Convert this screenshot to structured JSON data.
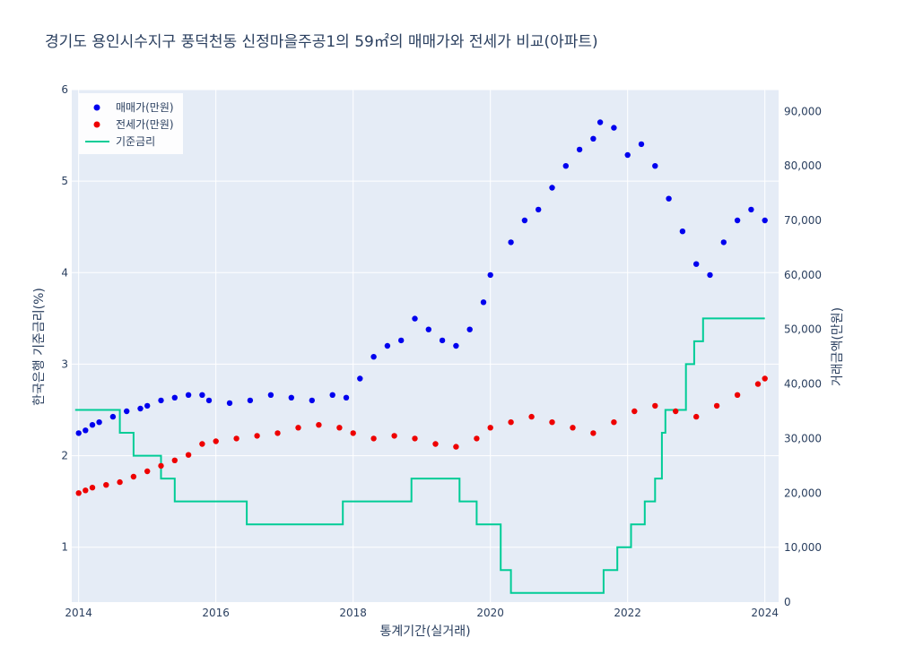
{
  "chart_data": {
    "type": "scatter",
    "title": "경기도 용인시수지구 풍덕천동 신정마을주공1의 59㎡의 매매가와 전세가 비교(아파트)",
    "xlabel": "통계기간(실거래)",
    "y_left_label": "한국은행 기준금리(%)",
    "y_right_label": "거래금액(만원)",
    "x_range": [
      2013.9,
      2024.2
    ],
    "x_ticks": [
      2014,
      2016,
      2018,
      2020,
      2022,
      2024
    ],
    "x_tick_labels": [
      "2014",
      "2016",
      "2018",
      "2020",
      "2022",
      "2024"
    ],
    "y_left_range": [
      0.4,
      6.0
    ],
    "y_left_ticks": [
      1,
      2,
      3,
      4,
      5,
      6
    ],
    "y_left_tick_labels": [
      "1",
      "2",
      "3",
      "4",
      "5",
      "6"
    ],
    "y_right_range": [
      0,
      94000
    ],
    "y_right_ticks": [
      0,
      10000,
      20000,
      30000,
      40000,
      50000,
      60000,
      70000,
      80000,
      90000
    ],
    "y_right_tick_labels": [
      "0",
      "10,000",
      "20,000",
      "30,000",
      "40,000",
      "50,000",
      "60,000",
      "70,000",
      "80,000",
      "90,000"
    ],
    "legend": [
      "매매가(만원)",
      "전세가(만원)",
      "기준금리"
    ],
    "colors": {
      "sale": "#0000ee",
      "jeonse": "#ee0000",
      "rate": "#00cc96",
      "plot_bg": "#e5ecf6"
    },
    "series": [
      {
        "name": "매매가(만원)",
        "axis": "right",
        "mode": "markers",
        "x": [
          2014.0,
          2014.1,
          2014.2,
          2014.3,
          2014.5,
          2014.7,
          2014.9,
          2015.0,
          2015.2,
          2015.4,
          2015.6,
          2015.8,
          2015.9,
          2016.2,
          2016.5,
          2016.8,
          2017.1,
          2017.4,
          2017.7,
          2017.9,
          2018.1,
          2018.3,
          2018.5,
          2018.7,
          2018.9,
          2019.1,
          2019.3,
          2019.5,
          2019.7,
          2019.9,
          2020.0,
          2020.3,
          2020.5,
          2020.7,
          2020.9,
          2021.1,
          2021.3,
          2021.5,
          2021.6,
          2021.8,
          2022.0,
          2022.2,
          2022.4,
          2022.6,
          2022.8,
          2023.0,
          2023.2,
          2023.4,
          2023.6,
          2023.8,
          2024.0
        ],
        "y": [
          31000,
          31500,
          32500,
          33000,
          34000,
          35000,
          35500,
          36000,
          37000,
          37500,
          38000,
          38000,
          37000,
          36500,
          37000,
          38000,
          37500,
          37000,
          38000,
          37500,
          41000,
          45000,
          47000,
          48000,
          52000,
          50000,
          48000,
          47000,
          50000,
          55000,
          60000,
          66000,
          70000,
          72000,
          76000,
          80000,
          83000,
          85000,
          88000,
          87000,
          82000,
          84000,
          80000,
          74000,
          68000,
          62000,
          60000,
          66000,
          70000,
          72000,
          70000
        ]
      },
      {
        "name": "전세가(만원)",
        "axis": "right",
        "mode": "markers",
        "x": [
          2014.0,
          2014.1,
          2014.2,
          2014.4,
          2014.6,
          2014.8,
          2015.0,
          2015.2,
          2015.4,
          2015.6,
          2015.8,
          2016.0,
          2016.3,
          2016.6,
          2016.9,
          2017.2,
          2017.5,
          2017.8,
          2018.0,
          2018.3,
          2018.6,
          2018.9,
          2019.2,
          2019.5,
          2019.8,
          2020.0,
          2020.3,
          2020.6,
          2020.9,
          2021.2,
          2021.5,
          2021.8,
          2022.1,
          2022.4,
          2022.7,
          2023.0,
          2023.3,
          2023.6,
          2023.9,
          2024.0
        ],
        "y": [
          20000,
          20500,
          21000,
          21500,
          22000,
          23000,
          24000,
          25000,
          26000,
          27000,
          29000,
          29500,
          30000,
          30500,
          31000,
          32000,
          32500,
          32000,
          31000,
          30000,
          30500,
          30000,
          29000,
          28500,
          30000,
          32000,
          33000,
          34000,
          33000,
          32000,
          31000,
          33000,
          35000,
          36000,
          35000,
          34000,
          36000,
          38000,
          40000,
          41000
        ]
      },
      {
        "name": "기준금리",
        "axis": "left",
        "mode": "lines",
        "x": [
          2013.95,
          2014.6,
          2014.6,
          2014.8,
          2014.8,
          2015.2,
          2015.2,
          2015.4,
          2015.4,
          2015.45,
          2015.45,
          2016.45,
          2016.45,
          2017.85,
          2017.85,
          2018.85,
          2018.85,
          2019.55,
          2019.55,
          2019.8,
          2019.8,
          2020.15,
          2020.15,
          2020.3,
          2020.3,
          2020.4,
          2020.4,
          2021.65,
          2021.65,
          2021.85,
          2021.85,
          2021.95,
          2021.95,
          2022.05,
          2022.05,
          2022.25,
          2022.25,
          2022.4,
          2022.4,
          2022.5,
          2022.5,
          2022.55,
          2022.55,
          2022.8,
          2022.8,
          2022.85,
          2022.85,
          2022.97,
          2022.97,
          2023.1,
          2023.1,
          2024.0
        ],
        "y": [
          2.5,
          2.5,
          2.25,
          2.25,
          2.0,
          2.0,
          1.75,
          1.75,
          1.5,
          1.5,
          1.5,
          1.5,
          1.25,
          1.25,
          1.5,
          1.5,
          1.75,
          1.75,
          1.5,
          1.5,
          1.25,
          1.25,
          0.75,
          0.75,
          0.5,
          0.5,
          0.5,
          0.5,
          0.75,
          0.75,
          1.0,
          1.0,
          1.0,
          1.0,
          1.25,
          1.25,
          1.5,
          1.5,
          1.75,
          1.75,
          2.25,
          2.25,
          2.5,
          2.5,
          2.5,
          2.5,
          3.0,
          3.0,
          3.25,
          3.25,
          3.5,
          3.5
        ]
      }
    ]
  }
}
